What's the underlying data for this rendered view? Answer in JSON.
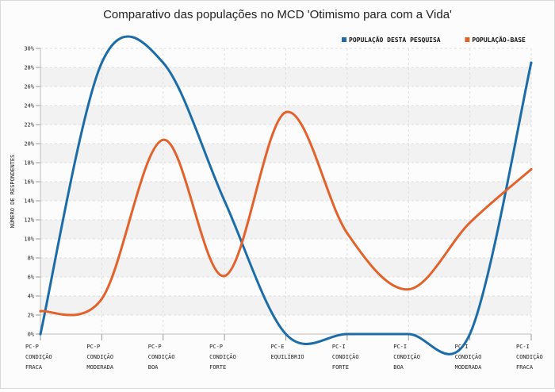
{
  "chart_data": {
    "type": "line",
    "title": "Comparativo das populações no MCD 'Otimismo para com a Vida'",
    "xlabel": "",
    "ylabel": "NÚMERO DE RESPONDENTES",
    "ylim": [
      0,
      30
    ],
    "y_ticks": [
      "0%",
      "2%",
      "4%",
      "6%",
      "8%",
      "10%",
      "12%",
      "14%",
      "16%",
      "18%",
      "20%",
      "22%",
      "24%",
      "26%",
      "28%",
      "30%"
    ],
    "grid": true,
    "legend_position": "top-right",
    "categories": [
      [
        "PC-P",
        "CONDIÇÃO",
        "FRACA"
      ],
      [
        "PC-P",
        "CONDIÇÃO",
        "MODERADA"
      ],
      [
        "PC-P",
        "CONDIÇÃO",
        "BOA"
      ],
      [
        "PC-P",
        "CONDIÇÃO",
        "FORTE"
      ],
      [
        "PC-E",
        "EQUILÍBRIO"
      ],
      [
        "PC-I",
        "CONDIÇÃO",
        "FORTE"
      ],
      [
        "PC-I",
        "CONDIÇÃO",
        "BOA"
      ],
      [
        "PC-I",
        "CONDIÇÃO",
        "MODERADA"
      ],
      [
        "PC-I",
        "CONDIÇÃO",
        "FRACA"
      ]
    ],
    "series": [
      {
        "name": "POPULAÇÃO DESTA PESQUISA",
        "color": "#1c6ca8",
        "values": [
          0,
          28.5,
          28.5,
          14,
          0,
          0,
          0,
          0,
          28.5
        ]
      },
      {
        "name": "POPULAÇÃO-BASE",
        "color": "#e2622c",
        "values": [
          2.4,
          3.7,
          20.4,
          6.1,
          23.3,
          10.6,
          4.7,
          11.7,
          17.3
        ]
      }
    ]
  }
}
